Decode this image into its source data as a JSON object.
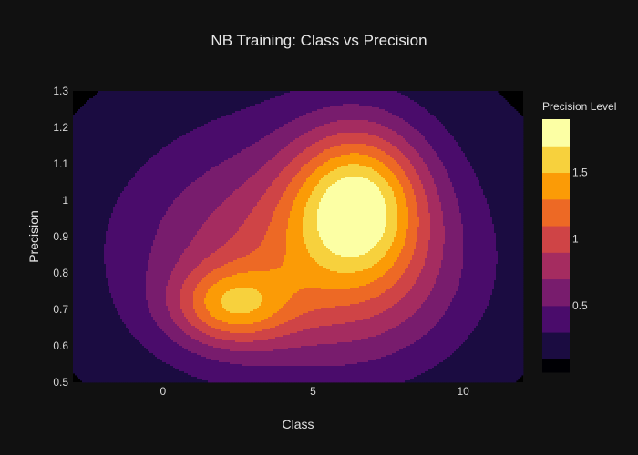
{
  "chart_data": {
    "type": "contour",
    "title": "NB Training: Class vs Precision",
    "xlabel": "Class",
    "ylabel": "Precision",
    "xlim": [
      -3,
      12
    ],
    "ylim": [
      0.5,
      1.3
    ],
    "x_ticks": [
      0,
      5,
      10
    ],
    "y_ticks": [
      0.5,
      0.6,
      0.7,
      0.8,
      0.9,
      1,
      1.1,
      1.2,
      1.3
    ],
    "colorbar": {
      "title": "Precision Level",
      "ticks": [
        0.5,
        1,
        1.5
      ],
      "range": [
        0,
        1.9
      ],
      "levels": [
        0,
        0.1,
        0.3,
        0.5,
        0.7,
        0.9,
        1.1,
        1.3,
        1.5,
        1.7,
        1.9
      ],
      "colors": [
        "#000004",
        "#1b0c41",
        "#4a0c6b",
        "#781c6d",
        "#a52c60",
        "#cf4446",
        "#ed6925",
        "#fb9b06",
        "#f7d13d",
        "#fcffa4"
      ]
    },
    "peaks": [
      {
        "class": 6.5,
        "precision": 1.0,
        "level": 1.85
      },
      {
        "class": 2.3,
        "precision": 0.71,
        "level": 1.78
      }
    ],
    "background_color": "#000000",
    "paper_color": "#111111"
  }
}
